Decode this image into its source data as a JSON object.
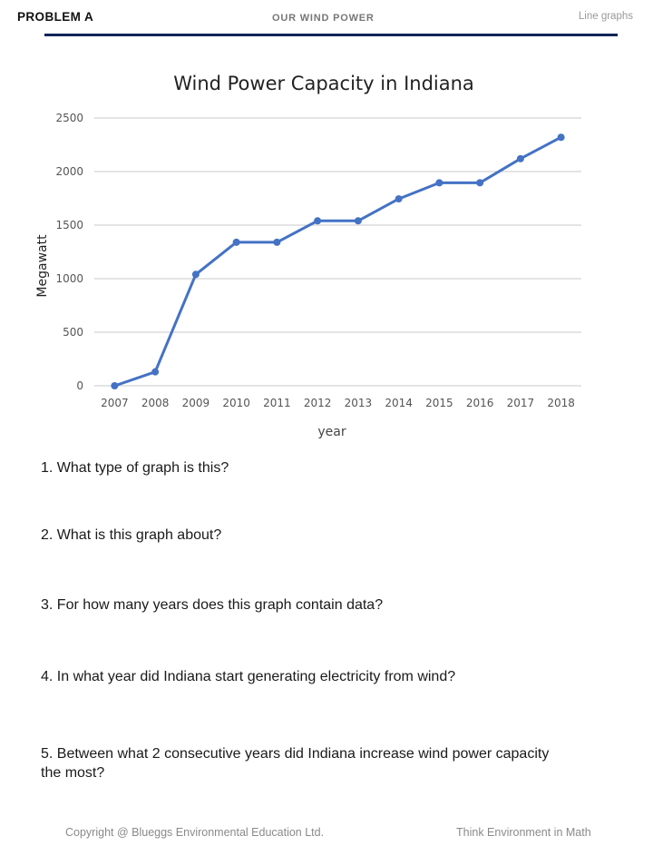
{
  "header": {
    "problem_label": "PROBLEM A",
    "topic": "OUR WIND POWER",
    "section": "Line graphs",
    "rule_color": "#0f2557"
  },
  "chart_data": {
    "type": "line",
    "title": "Wind Power Capacity in Indiana",
    "xlabel": "year",
    "ylabel": "Megawatt",
    "categories": [
      "2007",
      "2008",
      "2009",
      "2010",
      "2011",
      "2012",
      "2013",
      "2014",
      "2015",
      "2016",
      "2017",
      "2018"
    ],
    "series": [
      {
        "name": "Megawatt",
        "values": [
          0,
          130,
          1040,
          1340,
          1340,
          1540,
          1540,
          1745,
          1895,
          1895,
          2120,
          2320
        ],
        "color": "#4472c4"
      }
    ],
    "ylim": [
      0,
      2500
    ],
    "yticks": [
      "0",
      "500",
      "1000",
      "1500",
      "2000",
      "2500"
    ],
    "grid": true,
    "legend": "none"
  },
  "questions": [
    "1. What type of graph is this?",
    "2. What is this graph about?",
    "3. For how many years does this graph contain data?",
    "4. In what year did Indiana start generating electricity from wind?",
    "5. Between what 2 consecutive years did Indiana increase wind power capacity",
    "the most?"
  ],
  "footer": {
    "copyright": "Copyright @ Blueggs Environmental Education Ltd.",
    "tagline": "Think Environment in Math"
  }
}
